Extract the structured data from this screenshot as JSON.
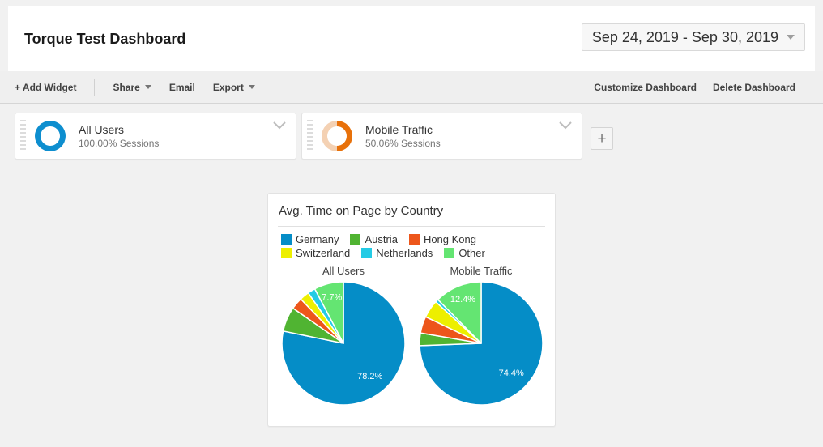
{
  "header": {
    "title": "Torque Test Dashboard",
    "date_range": "Sep 24, 2019 - Sep 30, 2019"
  },
  "toolbar": {
    "add_widget": "+ Add Widget",
    "share": "Share",
    "email": "Email",
    "export": "Export",
    "customize": "Customize Dashboard",
    "delete": "Delete Dashboard"
  },
  "segments": [
    {
      "name": "All Users",
      "subtitle": "100.00% Sessions",
      "percent": 100,
      "color": "#0d8ecf",
      "track": "#0d8ecf"
    },
    {
      "name": "Mobile Traffic",
      "subtitle": "50.06% Sessions",
      "percent": 50.06,
      "color": "#e8710a",
      "track": "#f4d1b3"
    }
  ],
  "add_segment": {
    "label": "+"
  },
  "widget": {
    "title": "Avg. Time on Page by Country"
  },
  "chart_data": {
    "type": "pie",
    "title": "Avg. Time on Page by Country",
    "legend_position": "top",
    "categories": [
      "Germany",
      "Austria",
      "Hong Kong",
      "Switzerland",
      "Netherlands",
      "Other"
    ],
    "colors": [
      "#058dc7",
      "#50b432",
      "#ed561b",
      "#edef00",
      "#24cbe5",
      "#64e572"
    ],
    "series": [
      {
        "name": "All Users",
        "values": [
          78.2,
          6.5,
          3.1,
          2.5,
          2.0,
          7.7
        ],
        "labels": [
          "78.2%",
          "",
          "",
          "",
          "",
          "7.7%"
        ]
      },
      {
        "name": "Mobile Traffic",
        "values": [
          74.4,
          3.3,
          4.4,
          4.7,
          0.8,
          12.4
        ],
        "labels": [
          "74.4%",
          "",
          "",
          "",
          "",
          "12.4%"
        ]
      }
    ]
  }
}
